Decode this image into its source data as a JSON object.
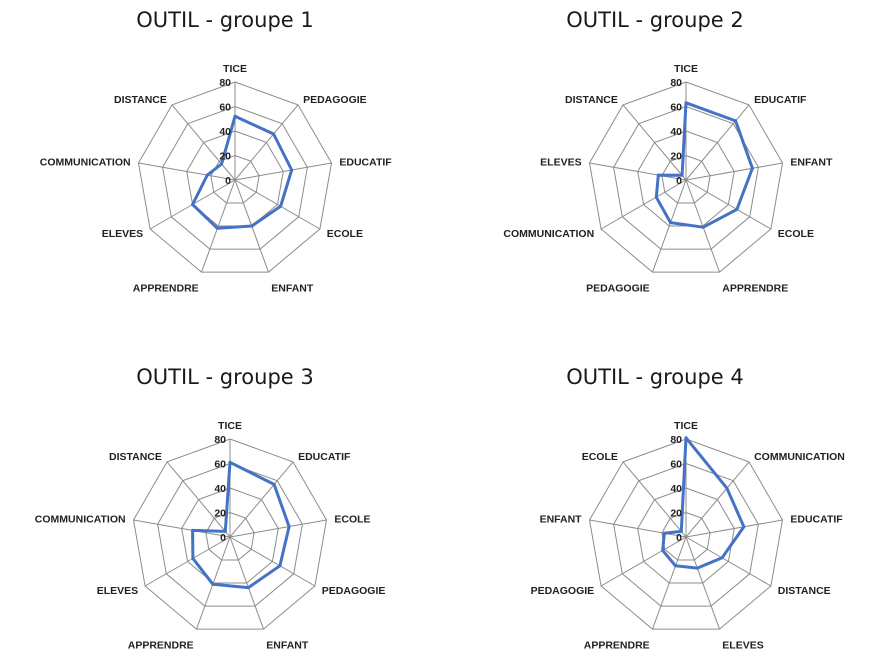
{
  "chart_data": [
    {
      "type": "radar",
      "title": "OUTIL - groupe 1",
      "rlim": [
        0,
        80
      ],
      "ticks": [
        "0",
        "20",
        "40",
        "60",
        "80"
      ],
      "categories": [
        "TICE",
        "PEDAGOGIE",
        "EDUCATIF",
        "ECOLE",
        "ENFANT",
        "APPRENDRE",
        "ELEVES",
        "COMMUNICATION",
        "DISTANCE"
      ],
      "values": [
        52,
        49,
        47,
        43,
        40,
        42,
        40,
        23,
        17
      ],
      "color": "#4472C4",
      "grid": true
    },
    {
      "type": "radar",
      "title": "OUTIL - groupe 2",
      "rlim": [
        0,
        80
      ],
      "ticks": [
        "0",
        "20",
        "40",
        "60",
        "80"
      ],
      "categories": [
        "TICE",
        "EDUCATIF",
        "ENFANT",
        "ECOLE",
        "APPRENDRE",
        "PEDAGOGIE",
        "COMMUNICATION",
        "ELEVES",
        "DISTANCE"
      ],
      "values": [
        63,
        63,
        55,
        48,
        41,
        37,
        28,
        23,
        5
      ],
      "color": "#4472C4",
      "grid": true
    },
    {
      "type": "radar",
      "title": "OUTIL - groupe 3",
      "rlim": [
        0,
        80
      ],
      "ticks": [
        "0",
        "20",
        "40",
        "60",
        "80"
      ],
      "categories": [
        "TICE",
        "EDUCATIF",
        "ECOLE",
        "PEDAGOGIE",
        "ENFANT",
        "APPRENDRE",
        "ELEVES",
        "COMMUNICATION",
        "DISTANCE"
      ],
      "values": [
        61,
        56,
        49,
        47,
        44,
        41,
        35,
        31,
        6
      ],
      "color": "#4472C4",
      "grid": true
    },
    {
      "type": "radar",
      "title": "OUTIL - groupe 4",
      "rlim": [
        0,
        80
      ],
      "ticks": [
        "0",
        "20",
        "40",
        "60",
        "80"
      ],
      "categories": [
        "TICE",
        "COMMUNICATION",
        "EDUCATIF",
        "DISTANCE",
        "ELEVES",
        "APPRENDRE",
        "PEDAGOGIE",
        "ENFANT",
        "ECOLE"
      ],
      "values": [
        81,
        52,
        48,
        34,
        27,
        25,
        22,
        18,
        6
      ],
      "color": "#4472C4",
      "grid": true
    }
  ]
}
